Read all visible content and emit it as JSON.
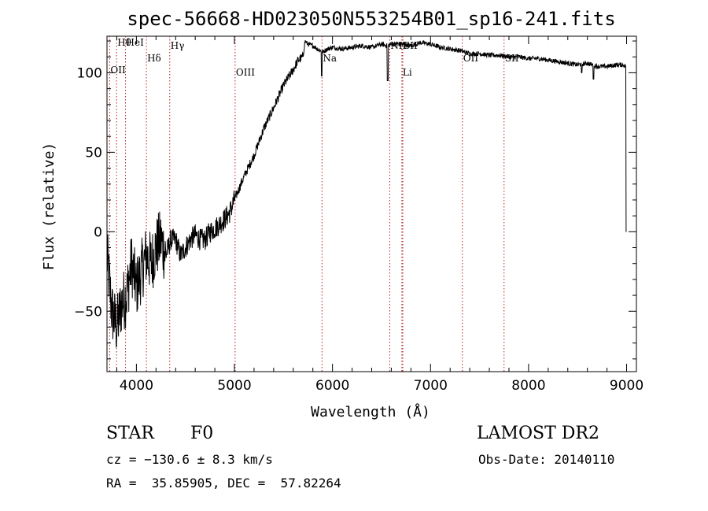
{
  "chart_data": {
    "type": "line",
    "title": "spec-56668-HD023050N553254B01_sp16-241.fits",
    "xlabel": "Wavelength (Å)",
    "ylabel": "Flux (relative)",
    "xlim": [
      3700,
      9100
    ],
    "ylim": [
      -88,
      123
    ],
    "xticks": [
      4000,
      5000,
      6000,
      7000,
      8000,
      9000
    ],
    "yticks": [
      -50,
      0,
      50,
      100
    ],
    "grid": false,
    "line_color": "#000000",
    "marker_color": "#b22222",
    "series": [
      {
        "name": "spectrum",
        "x": [
          3700,
          3750,
          3800,
          3850,
          3900,
          3950,
          4000,
          4050,
          4100,
          4150,
          4200,
          4250,
          4300,
          4350,
          4400,
          4450,
          4500,
          4550,
          4600,
          4650,
          4700,
          4750,
          4800,
          4850,
          4900,
          4950,
          5000,
          5100,
          5200,
          5300,
          5400,
          5500,
          5600,
          5650,
          5700,
          5720,
          5750,
          5800,
          5850,
          5900,
          5950,
          6000,
          6100,
          6200,
          6300,
          6400,
          6500,
          6560,
          6600,
          6700,
          6800,
          6900,
          7000,
          7100,
          7200,
          7300,
          7400,
          7500,
          7600,
          7700,
          7800,
          7900,
          8000,
          8100,
          8200,
          8300,
          8400,
          8500,
          8600,
          8700,
          8800,
          8900,
          8960,
          9000
        ],
        "y": [
          -15,
          -50,
          -60,
          -45,
          -40,
          -20,
          -35,
          -25,
          -15,
          -20,
          -10,
          -5,
          -15,
          -5,
          -5,
          -15,
          -10,
          -5,
          -2,
          -5,
          -5,
          0,
          2,
          5,
          8,
          12,
          20,
          35,
          48,
          65,
          78,
          92,
          102,
          108,
          110,
          120,
          118,
          117,
          115,
          113,
          115,
          116,
          115,
          116,
          117,
          116,
          118,
          117,
          118,
          118,
          117,
          119,
          118,
          116,
          115,
          114,
          112,
          112,
          111,
          111,
          110,
          110,
          109,
          109,
          108,
          107,
          106,
          105,
          106,
          104,
          104,
          105,
          105,
          104
        ]
      }
    ],
    "absorption_features": [
      {
        "x": 6563,
        "y": 95
      },
      {
        "x": 8542,
        "y": 100
      },
      {
        "x": 8662,
        "y": 96
      },
      {
        "x": 5890,
        "y": 98
      },
      {
        "x": 9000,
        "y": 0
      }
    ],
    "spectral_lines": [
      {
        "label": "Hθ",
        "x": 3798
      },
      {
        "label": "OII",
        "x": 3727
      },
      {
        "label": "HeI",
        "x": 3889
      },
      {
        "label": "Hδ",
        "x": 4102
      },
      {
        "label": "Hγ",
        "x": 4340
      },
      {
        "label": "OIII",
        "x": 5007
      },
      {
        "label": "Na",
        "x": 5893
      },
      {
        "label": "NII",
        "x": 6584
      },
      {
        "label": "SII",
        "x": 6717
      },
      {
        "label": "Li",
        "x": 6708
      },
      {
        "label": "OII",
        "x": 7325
      },
      {
        "label": "SII",
        "x": 7750
      }
    ]
  },
  "info": {
    "object_class": "STAR",
    "subclass": "F0",
    "survey": "LAMOST DR2",
    "cz": "cz = −130.6 ± 8.3 km/s",
    "obs_date": "Obs-Date: 20140110",
    "coords": "RA =  35.85905, DEC =  57.82264"
  }
}
